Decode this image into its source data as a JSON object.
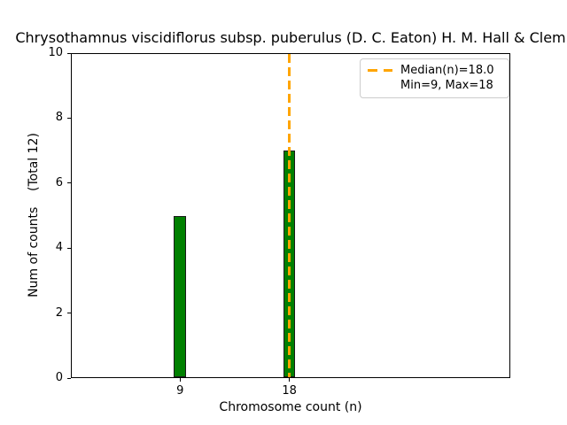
{
  "chart_data": {
    "type": "bar",
    "title": "Chrysothamnus viscidiflorus subsp. puberulus (D. C. Eaton) H. M. Hall & Clem",
    "xlabel": "Chromosome count (n)",
    "ylabel": "Num of counts    (Total 12)",
    "categories": [
      9,
      18
    ],
    "values": [
      5,
      7
    ],
    "bar_width": 1,
    "total": 12,
    "median": 18.0,
    "min": 9,
    "max": 18,
    "x_ticks": [
      9,
      18
    ],
    "y_ticks": [
      0,
      2,
      4,
      6,
      8,
      10
    ],
    "xlim": [
      0,
      36.2
    ],
    "ylim": [
      0,
      10
    ],
    "grid": false,
    "legend": {
      "position": "upper right",
      "entries": [
        "Median(n)=18.0",
        "Min=9, Max=18"
      ]
    },
    "colors": {
      "bar_fill": "#008000",
      "bar_edge": "#1a1a1a",
      "median_line": "#FFA500",
      "axis": "#000000",
      "legend_border": "#cccccc"
    }
  }
}
